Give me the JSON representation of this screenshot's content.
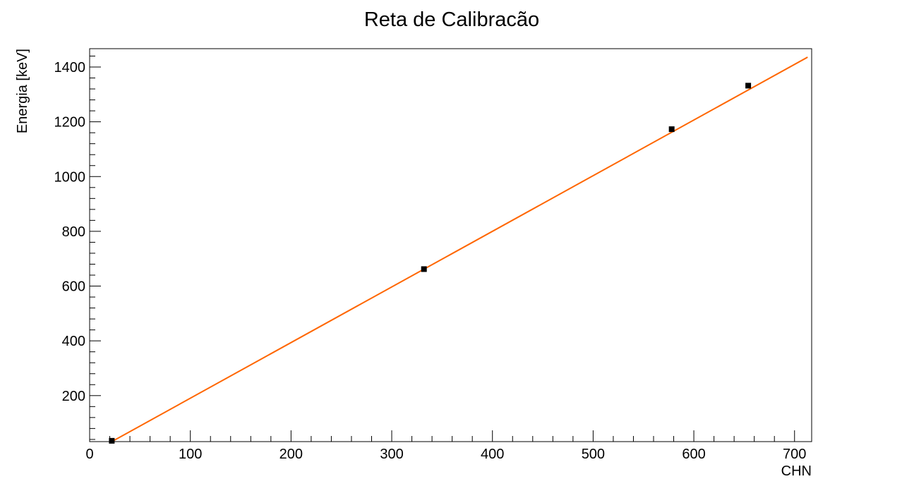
{
  "chart_data": {
    "type": "scatter",
    "title": "Reta de Calibracão",
    "xlabel": "CHN",
    "ylabel": "Energia [keV]",
    "xlim": [
      0,
      717
    ],
    "ylim": [
      32,
      1467
    ],
    "x_ticks": [
      0,
      100,
      200,
      300,
      400,
      500,
      600,
      700
    ],
    "y_ticks": [
      200,
      400,
      600,
      800,
      1000,
      1200,
      1400
    ],
    "grid": false,
    "points": [
      {
        "x": 22,
        "y": 35
      },
      {
        "x": 332,
        "y": 662
      },
      {
        "x": 578,
        "y": 1173
      },
      {
        "x": 654,
        "y": 1332
      }
    ],
    "fit_line": {
      "x": [
        22,
        713
      ],
      "y": [
        32,
        1436
      ],
      "color": "#ff6600"
    },
    "marker_color": "#000000"
  }
}
